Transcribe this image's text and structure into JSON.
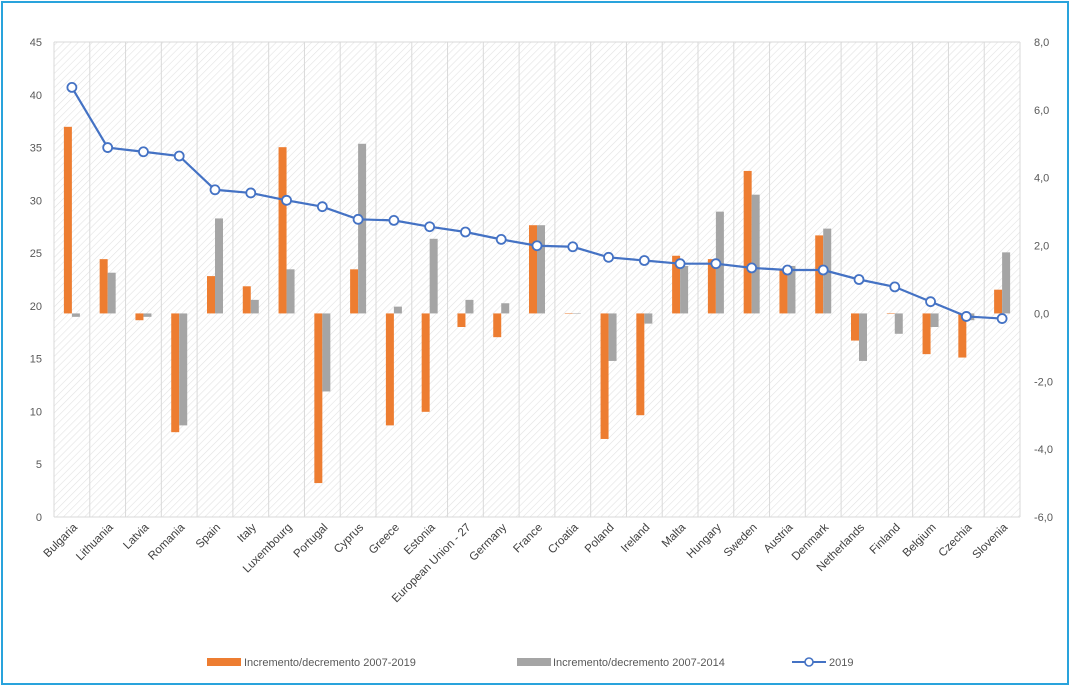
{
  "colors": {
    "border": "#29a3dc",
    "orange": "#ed7d31",
    "gray": "#a5a5a5",
    "line": "#4472c4",
    "grid": "#d9d9d9"
  },
  "legend": [
    {
      "label": "Incremento/decremento 2007-2019",
      "kind": "bar",
      "color": "#ed7d31"
    },
    {
      "label": "Incremento/decremento 2007-2014",
      "kind": "bar",
      "color": "#a5a5a5"
    },
    {
      "label": "2019",
      "kind": "line",
      "color": "#4472c4"
    }
  ],
  "chart_data": {
    "type": "bar",
    "title": "",
    "categories": [
      "Bulgaria",
      "Lithuania",
      "Latvia",
      "Romania",
      "Spain",
      "Italy",
      "Luxembourg",
      "Portugal",
      "Cyprus",
      "Greece",
      "Estonia",
      "European Union - 27",
      "Germany",
      "France",
      "Croatia",
      "Poland",
      "Ireland",
      "Malta",
      "Hungary",
      "Sweden",
      "Austria",
      "Denmark",
      "Netherlands",
      "Finland",
      "Belgium",
      "Czechia",
      "Slovenia"
    ],
    "y_left": {
      "min": 0,
      "max": 45,
      "step": 5,
      "ticks": [
        "0",
        "5",
        "10",
        "15",
        "20",
        "25",
        "30",
        "35",
        "40",
        "45"
      ]
    },
    "y_right": {
      "min": -6,
      "max": 8,
      "step": 2,
      "ticks": [
        "-6,0",
        "-4,0",
        "-2,0",
        "0,0",
        "2,0",
        "4,0",
        "6,0",
        "8,0"
      ]
    },
    "grid": true,
    "legend_position": "bottom",
    "series": [
      {
        "name": "Incremento/decremento 2007-2019",
        "type": "bar",
        "axis": "right",
        "values": [
          5.5,
          1.6,
          -0.2,
          -3.5,
          1.1,
          0.8,
          4.9,
          -5.0,
          1.3,
          -3.3,
          -2.9,
          -0.4,
          -0.7,
          2.6,
          0.0,
          -3.7,
          -3.0,
          1.7,
          1.6,
          4.2,
          1.3,
          2.3,
          -0.8,
          0.0,
          -1.2,
          -1.3,
          0.7
        ]
      },
      {
        "name": "Incremento/decremento 2007-2014",
        "type": "bar",
        "axis": "right",
        "values": [
          -0.1,
          1.2,
          -0.1,
          -3.3,
          2.8,
          0.4,
          1.3,
          -2.3,
          5.0,
          0.2,
          2.2,
          0.4,
          0.3,
          2.6,
          0.0,
          -1.4,
          -0.3,
          1.4,
          3.0,
          3.5,
          1.4,
          2.5,
          -1.4,
          -0.6,
          -0.4,
          -0.2,
          1.8
        ]
      },
      {
        "name": "2019",
        "type": "line",
        "axis": "left",
        "values": [
          40.7,
          35.0,
          34.6,
          34.2,
          31.0,
          30.7,
          30.0,
          29.4,
          28.2,
          28.1,
          27.5,
          27.0,
          26.3,
          25.7,
          25.6,
          24.6,
          24.3,
          24.0,
          24.0,
          23.6,
          23.4,
          23.4,
          22.5,
          21.8,
          20.4,
          19.0,
          18.8
        ]
      }
    ]
  }
}
